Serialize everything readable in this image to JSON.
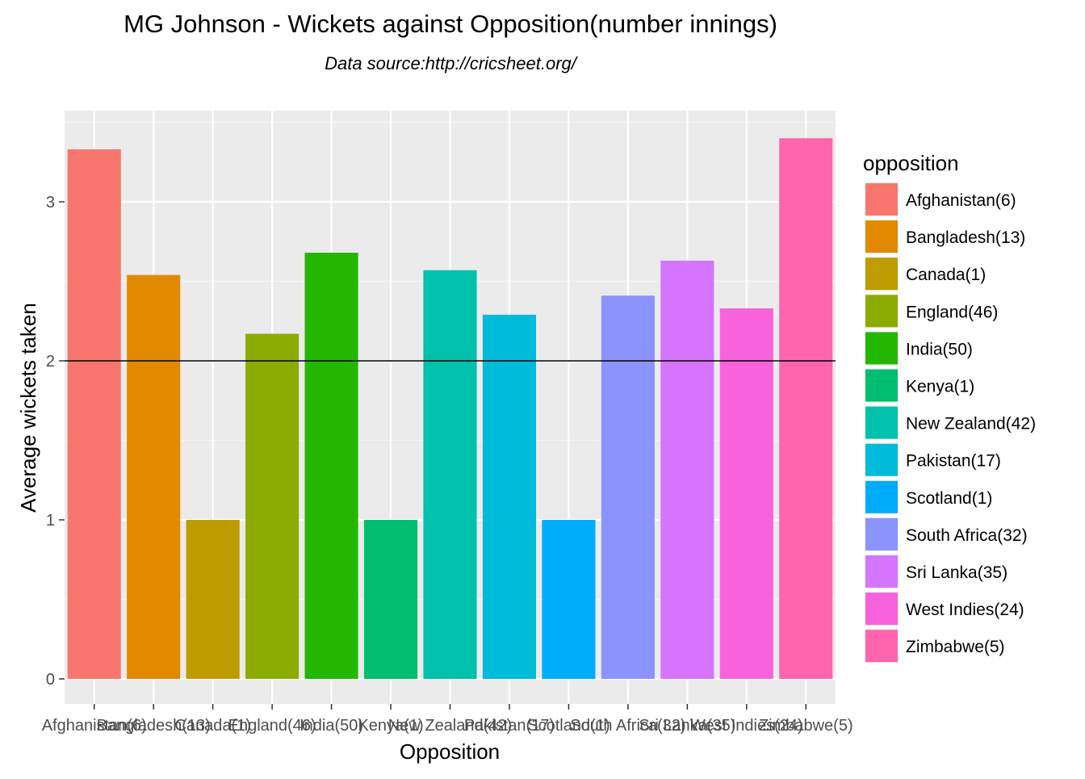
{
  "chart_data": {
    "type": "bar",
    "title": "MG Johnson - Wickets against Opposition(number innings)",
    "subtitle": "Data source:http://cricsheet.org/",
    "xlabel": "Opposition",
    "ylabel": "Average wickets taken",
    "ylim": [
      0,
      3.5
    ],
    "yticks": [
      0,
      1,
      2,
      3
    ],
    "reference_line": 2,
    "grid": true,
    "legend_title": "opposition",
    "legend_position": "right",
    "categories": [
      "Afghanistan(6)",
      "Bangladesh(13)",
      "Canada(1)",
      "England(46)",
      "India(50)",
      "Kenya(1)",
      "New Zealand(42)",
      "Pakistan(17)",
      "Scotland(1)",
      "South Africa(32)",
      "Sri Lanka(35)",
      "West Indies(24)",
      "Zimbabwe(5)"
    ],
    "values": [
      3.33,
      2.54,
      1.0,
      2.17,
      2.68,
      1.0,
      2.57,
      2.29,
      1.0,
      2.41,
      2.63,
      2.33,
      3.4
    ],
    "colors": [
      "#F8766D",
      "#E18A00",
      "#BE9C00",
      "#8CAB00",
      "#24B700",
      "#00BE70",
      "#00C1AB",
      "#00BBDA",
      "#00ACFC",
      "#8B93FF",
      "#D575FE",
      "#F962DD",
      "#FF65AC"
    ]
  }
}
